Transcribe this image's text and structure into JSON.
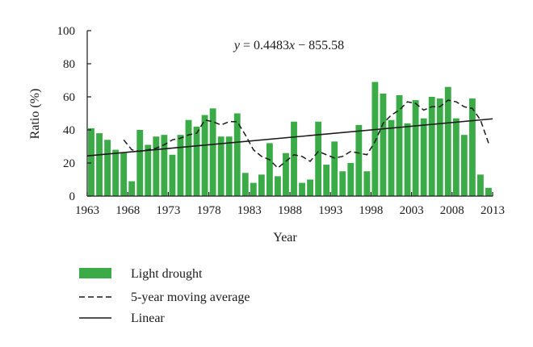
{
  "chart_data": {
    "type": "bar",
    "title": "",
    "equation": "y = 0.4483x − 855.58",
    "equation_parts": {
      "lhs": "y",
      "mid": " = 0.4483",
      "var": "x",
      "rhs": " − 855.58"
    },
    "xlabel": "Year",
    "ylabel": "Ratio (%)",
    "ylim": [
      0,
      100
    ],
    "yticks": [
      0,
      20,
      40,
      60,
      80,
      100
    ],
    "xlim": [
      1963,
      2013
    ],
    "xticks": [
      1963,
      1968,
      1973,
      1978,
      1983,
      1988,
      1993,
      1998,
      2003,
      2008,
      2013
    ],
    "grid": false,
    "legend_placement": "bottom-left",
    "x": [
      1964,
      1965,
      1966,
      1967,
      1968,
      1969,
      1970,
      1971,
      1972,
      1973,
      1974,
      1975,
      1976,
      1977,
      1978,
      1979,
      1980,
      1981,
      1982,
      1983,
      1984,
      1985,
      1986,
      1987,
      1988,
      1989,
      1990,
      1991,
      1992,
      1993,
      1994,
      1995,
      1996,
      1997,
      1998,
      1999,
      2000,
      2001,
      2002,
      2003,
      2004,
      2005,
      2006,
      2007,
      2008,
      2009,
      2010,
      2011,
      2012,
      2013
    ],
    "series": [
      {
        "name": "Light drought",
        "kind": "bar",
        "color": "#3aab47",
        "values": [
          41,
          38,
          34,
          28,
          26,
          9,
          40,
          31,
          36,
          37,
          25,
          37,
          46,
          42,
          49,
          53,
          36,
          36,
          50,
          14,
          8,
          13,
          32,
          12,
          26,
          45,
          8,
          10,
          45,
          19,
          33,
          15,
          20,
          43,
          15,
          69,
          62,
          46,
          61,
          44,
          58,
          47,
          60,
          59,
          66,
          47,
          37,
          59,
          13,
          5
        ]
      },
      {
        "name": "5-year moving average",
        "kind": "line",
        "style": "dashed",
        "color": "#1a1a1a",
        "x": [
          1968,
          1969,
          1970,
          1971,
          1972,
          1973,
          1974,
          1975,
          1976,
          1977,
          1978,
          1979,
          1980,
          1981,
          1982,
          1983,
          1984,
          1985,
          1986,
          1987,
          1988,
          1989,
          1990,
          1991,
          1992,
          1993,
          1994,
          1995,
          1996,
          1997,
          1998,
          1999,
          2000,
          2001,
          2002,
          2003,
          2004,
          2005,
          2006,
          2007,
          2008,
          2009,
          2010,
          2011,
          2012,
          2013
        ],
        "values": [
          34,
          28,
          27,
          28,
          29,
          31,
          34,
          35,
          37,
          38,
          46,
          45,
          43,
          45,
          45,
          37,
          28,
          24,
          22,
          17,
          21,
          25,
          24,
          21,
          27,
          25,
          23,
          24,
          27,
          26,
          25,
          33,
          44,
          49,
          52,
          57,
          56,
          52,
          54,
          54,
          58,
          57,
          54,
          53,
          46,
          32
        ]
      },
      {
        "name": "Linear",
        "kind": "line",
        "style": "solid",
        "color": "#1a1a1a",
        "x": [
          1963,
          2013
        ],
        "values": [
          24.3,
          46.7
        ]
      }
    ]
  }
}
